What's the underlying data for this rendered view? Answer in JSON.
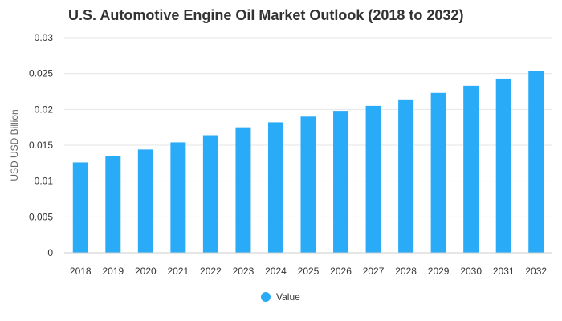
{
  "chart_data": {
    "type": "bar",
    "title": "U.S. Automotive Engine Oil Market Outlook (2018 to 2032)",
    "ylabel": "USD USD Billion",
    "xlabel": "",
    "categories": [
      "2018",
      "2019",
      "2020",
      "2021",
      "2022",
      "2023",
      "2024",
      "2025",
      "2026",
      "2027",
      "2028",
      "2029",
      "2030",
      "2031",
      "2032"
    ],
    "series": [
      {
        "name": "Value",
        "values": [
          0.0126,
          0.0135,
          0.0144,
          0.0154,
          0.0164,
          0.0175,
          0.0182,
          0.019,
          0.0198,
          0.0205,
          0.0214,
          0.0223,
          0.0233,
          0.0243,
          0.0253
        ],
        "color": "#2AABF7"
      }
    ],
    "ylim": [
      0,
      0.03
    ],
    "yticks": [
      "0",
      "0.005",
      "0.01",
      "0.015",
      "0.02",
      "0.025",
      "0.03"
    ],
    "ytick_values": [
      0,
      0.005,
      0.01,
      0.015,
      0.02,
      0.025,
      0.03
    ],
    "grid": true,
    "legend": "bottom-center"
  }
}
